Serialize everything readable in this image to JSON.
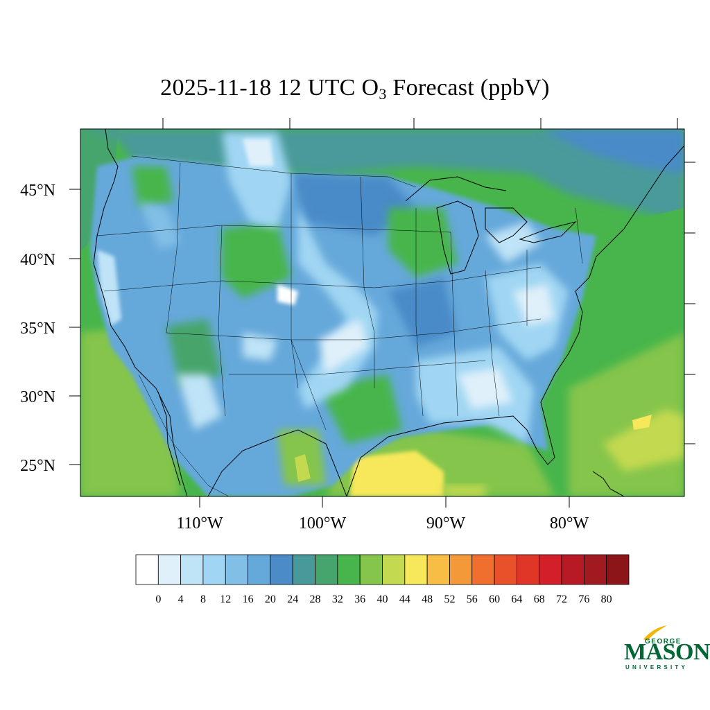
{
  "title": {
    "prefix": "2025-11-18 12 UTC O",
    "subscript": "3",
    "suffix": " Forecast (ppbV)"
  },
  "map": {
    "region": "Contiguous United States",
    "variable": "Surface ozone",
    "units": "ppbV",
    "lat_range": [
      22.5,
      49.5
    ],
    "lon_range": [
      -119,
      -71
    ],
    "lat_ticks": [
      {
        "value": 45,
        "label": "45°N"
      },
      {
        "value": 40,
        "label": "40°N"
      },
      {
        "value": 35,
        "label": "35°N"
      },
      {
        "value": 30,
        "label": "30°N"
      },
      {
        "value": 25,
        "label": "25°N"
      }
    ],
    "lon_ticks": [
      {
        "value": -110,
        "label": "110°W"
      },
      {
        "value": -100,
        "label": "100°W"
      },
      {
        "value": -90,
        "label": "90°W"
      },
      {
        "value": -80,
        "label": "80°W"
      }
    ]
  },
  "colorbar": {
    "labels": [
      "0",
      "4",
      "8",
      "12",
      "16",
      "20",
      "24",
      "28",
      "32",
      "36",
      "40",
      "44",
      "48",
      "52",
      "56",
      "60",
      "64",
      "68",
      "72",
      "76",
      "80"
    ],
    "colors": [
      "#ffffff",
      "#dff0fa",
      "#bfe3f7",
      "#a0d6f3",
      "#82bfe6",
      "#65a8da",
      "#4a8bc8",
      "#489a9a",
      "#46a56c",
      "#47b54b",
      "#85c54b",
      "#c3d94f",
      "#f6e85a",
      "#f7bd45",
      "#f4993a",
      "#f06f2e",
      "#e9512a",
      "#e03627",
      "#d21f2a",
      "#b71a24",
      "#a01a1f",
      "#8b1519"
    ]
  },
  "logo": {
    "line1": "GEORGE",
    "line2": "MASON",
    "line3": "UNIVERSITY",
    "color": "#006633",
    "accent": "#f2b705"
  }
}
